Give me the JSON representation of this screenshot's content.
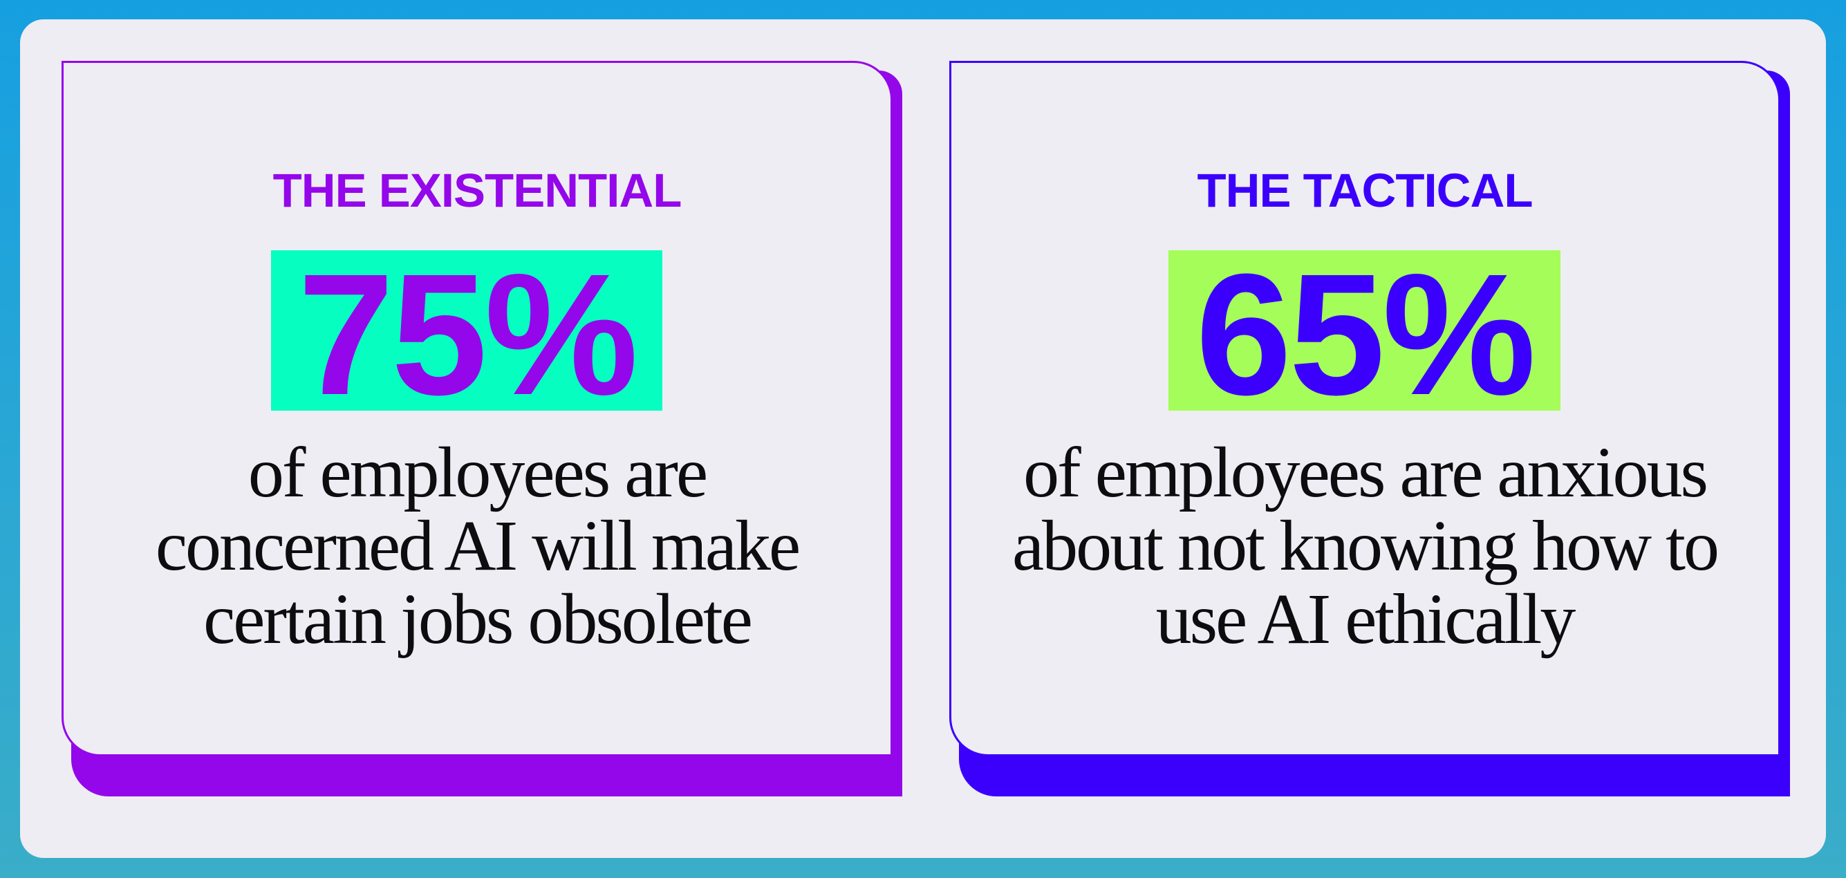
{
  "colors": {
    "background": "#1ea3dc",
    "panel": "#eeedf3",
    "existential_accent": "#9407ea",
    "existential_highlight": "#07fec1",
    "tactical_accent": "#3b00fc",
    "tactical_highlight": "#a5fd59",
    "text": "#0d0d10"
  },
  "cards": [
    {
      "label": "THE EXISTENTIAL",
      "stat": "75%",
      "description": "of employees are concerned AI will make certain jobs obsolete"
    },
    {
      "label": "THE TACTICAL",
      "stat": "65%",
      "description": "of employees are anxious about not knowing how to use AI ethically"
    }
  ]
}
